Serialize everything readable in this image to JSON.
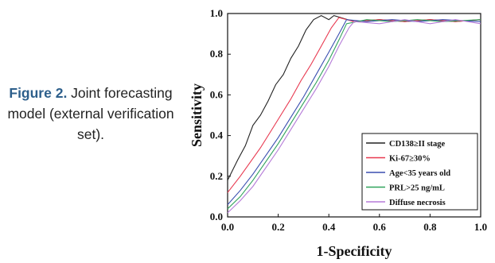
{
  "caption": {
    "figure_label": "Figure 2.",
    "text": " Joint forecasting model (external verification set)."
  },
  "chart_data": {
    "type": "line",
    "xlabel": "1-Specificity",
    "ylabel": "Sensitivity",
    "xlim": [
      0,
      1
    ],
    "ylim": [
      0,
      1
    ],
    "xticks": [
      "0.0",
      "0.2",
      "0.4",
      "0.6",
      "0.8",
      "1.0"
    ],
    "yticks": [
      "0.0",
      "0.2",
      "0.4",
      "0.6",
      "0.8",
      "1.0"
    ],
    "legend_position": "bottom-right",
    "grid": false,
    "series": [
      {
        "name": "CD138≥II stage",
        "color": "#222222",
        "points": [
          [
            0,
            0.18
          ],
          [
            0.04,
            0.28
          ],
          [
            0.07,
            0.35
          ],
          [
            0.1,
            0.45
          ],
          [
            0.13,
            0.5
          ],
          [
            0.16,
            0.57
          ],
          [
            0.19,
            0.65
          ],
          [
            0.22,
            0.7
          ],
          [
            0.25,
            0.78
          ],
          [
            0.28,
            0.84
          ],
          [
            0.31,
            0.92
          ],
          [
            0.34,
            0.97
          ],
          [
            0.37,
            0.99
          ],
          [
            0.4,
            0.97
          ],
          [
            0.42,
            0.99
          ],
          [
            0.5,
            0.96
          ],
          [
            0.6,
            0.97
          ],
          [
            0.7,
            0.96
          ],
          [
            0.8,
            0.97
          ],
          [
            0.9,
            0.96
          ],
          [
            1.0,
            0.97
          ]
        ]
      },
      {
        "name": "Ki-67≥30%",
        "color": "#e8384f",
        "points": [
          [
            0,
            0.12
          ],
          [
            0.05,
            0.2
          ],
          [
            0.09,
            0.27
          ],
          [
            0.13,
            0.34
          ],
          [
            0.17,
            0.42
          ],
          [
            0.21,
            0.5
          ],
          [
            0.25,
            0.58
          ],
          [
            0.29,
            0.67
          ],
          [
            0.33,
            0.75
          ],
          [
            0.37,
            0.84
          ],
          [
            0.41,
            0.93
          ],
          [
            0.44,
            0.98
          ],
          [
            0.5,
            0.96
          ],
          [
            0.6,
            0.97
          ],
          [
            0.7,
            0.96
          ],
          [
            0.8,
            0.97
          ],
          [
            0.9,
            0.96
          ],
          [
            1.0,
            0.97
          ]
        ]
      },
      {
        "name": "Age<35 years old",
        "color": "#3a4fb0",
        "points": [
          [
            0,
            0.06
          ],
          [
            0.05,
            0.13
          ],
          [
            0.1,
            0.21
          ],
          [
            0.15,
            0.3
          ],
          [
            0.2,
            0.39
          ],
          [
            0.25,
            0.49
          ],
          [
            0.3,
            0.59
          ],
          [
            0.35,
            0.7
          ],
          [
            0.4,
            0.81
          ],
          [
            0.44,
            0.9
          ],
          [
            0.47,
            0.97
          ],
          [
            0.55,
            0.96
          ],
          [
            0.65,
            0.97
          ],
          [
            0.75,
            0.96
          ],
          [
            0.85,
            0.97
          ],
          [
            1.0,
            0.96
          ]
        ]
      },
      {
        "name": "PRL>25 ng/mL",
        "color": "#2fa35a",
        "points": [
          [
            0,
            0.04
          ],
          [
            0.05,
            0.1
          ],
          [
            0.1,
            0.18
          ],
          [
            0.15,
            0.27
          ],
          [
            0.2,
            0.36
          ],
          [
            0.25,
            0.46
          ],
          [
            0.3,
            0.56
          ],
          [
            0.35,
            0.66
          ],
          [
            0.4,
            0.77
          ],
          [
            0.44,
            0.87
          ],
          [
            0.47,
            0.95
          ],
          [
            0.55,
            0.97
          ],
          [
            0.65,
            0.96
          ],
          [
            0.75,
            0.97
          ],
          [
            0.85,
            0.96
          ],
          [
            1.0,
            0.97
          ]
        ]
      },
      {
        "name": "Diffuse necrosis",
        "color": "#b57ad8",
        "points": [
          [
            0,
            0.02
          ],
          [
            0.05,
            0.08
          ],
          [
            0.1,
            0.15
          ],
          [
            0.15,
            0.24
          ],
          [
            0.2,
            0.33
          ],
          [
            0.25,
            0.43
          ],
          [
            0.3,
            0.53
          ],
          [
            0.35,
            0.63
          ],
          [
            0.4,
            0.74
          ],
          [
            0.44,
            0.84
          ],
          [
            0.48,
            0.93
          ],
          [
            0.5,
            0.96
          ],
          [
            0.6,
            0.95
          ],
          [
            0.7,
            0.97
          ],
          [
            0.8,
            0.95
          ],
          [
            0.9,
            0.97
          ],
          [
            1.0,
            0.95
          ]
        ]
      }
    ]
  }
}
